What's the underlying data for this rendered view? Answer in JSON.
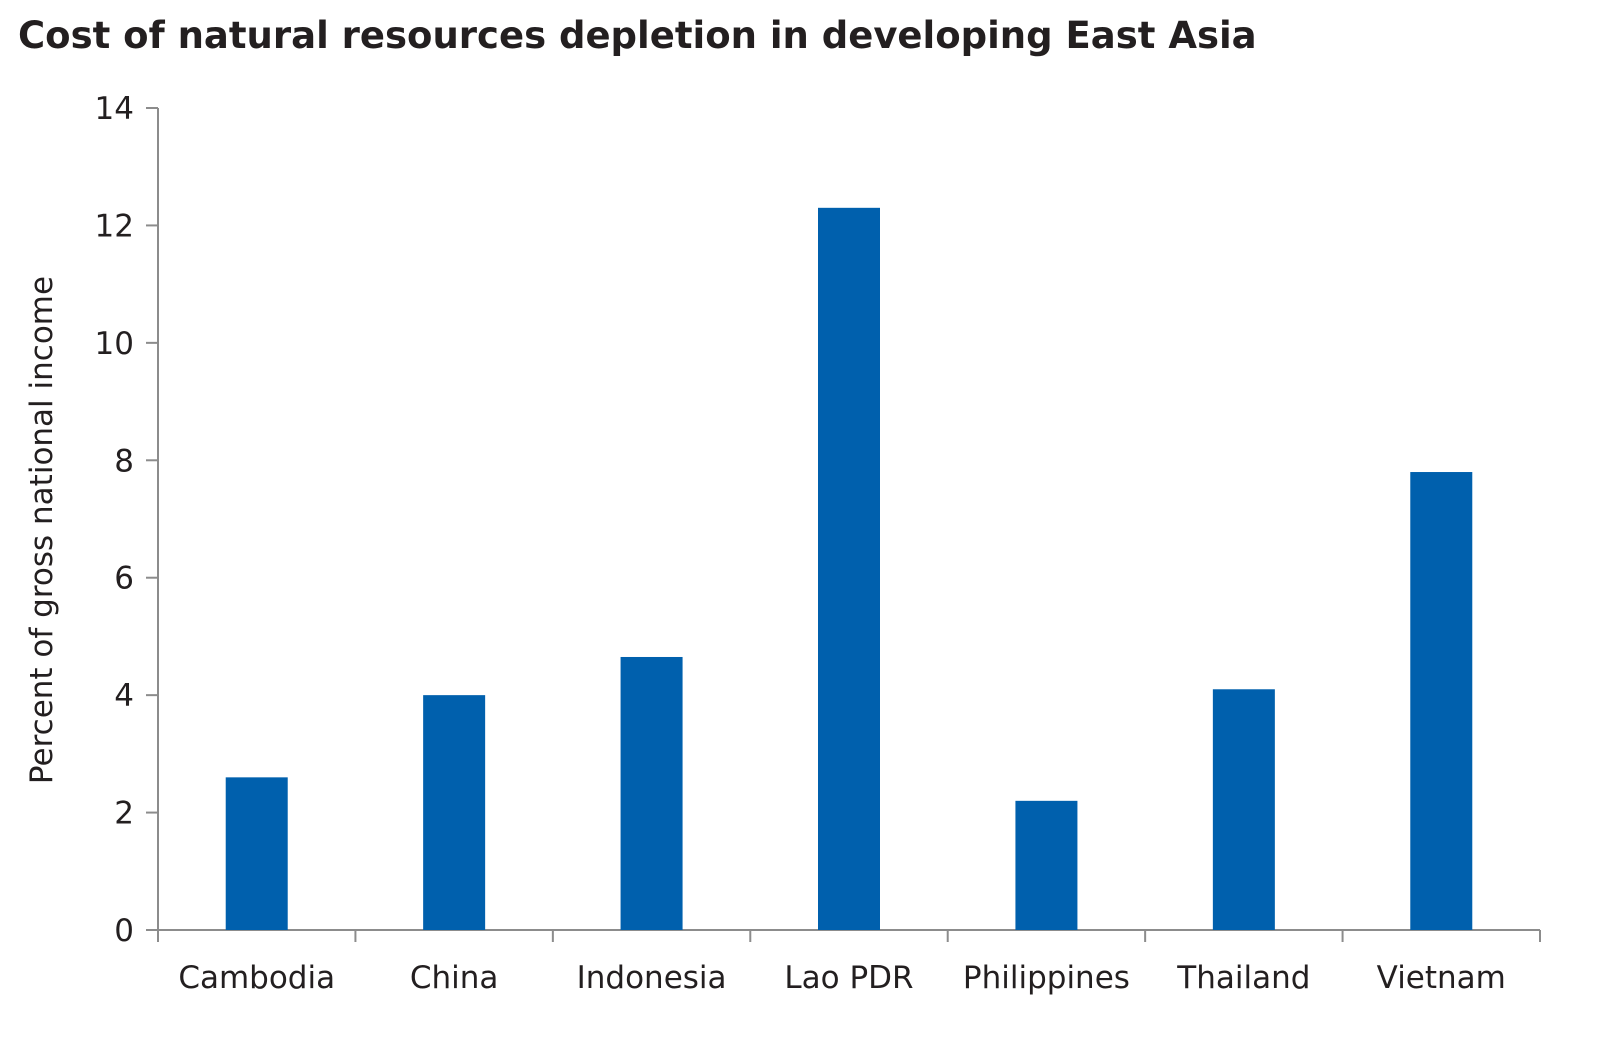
{
  "chart_data": {
    "type": "bar",
    "title": "Cost of natural resources depletion in developing East Asia",
    "xlabel": "",
    "ylabel": "Percent of gross national income",
    "categories": [
      "Cambodia",
      "China",
      "Indonesia",
      "Lao PDR",
      "Philippines",
      "Thailand",
      "Vietnam"
    ],
    "values": [
      2.6,
      4.0,
      4.65,
      12.3,
      2.2,
      4.1,
      7.8
    ],
    "ylim": [
      0,
      14
    ],
    "yticks": [
      0,
      2,
      4,
      6,
      8,
      10,
      12,
      14
    ],
    "grid": false,
    "legend": "none",
    "colors": {
      "bar": "#0060ad",
      "axis": "#8c8c8c",
      "text": "#231f20"
    }
  }
}
